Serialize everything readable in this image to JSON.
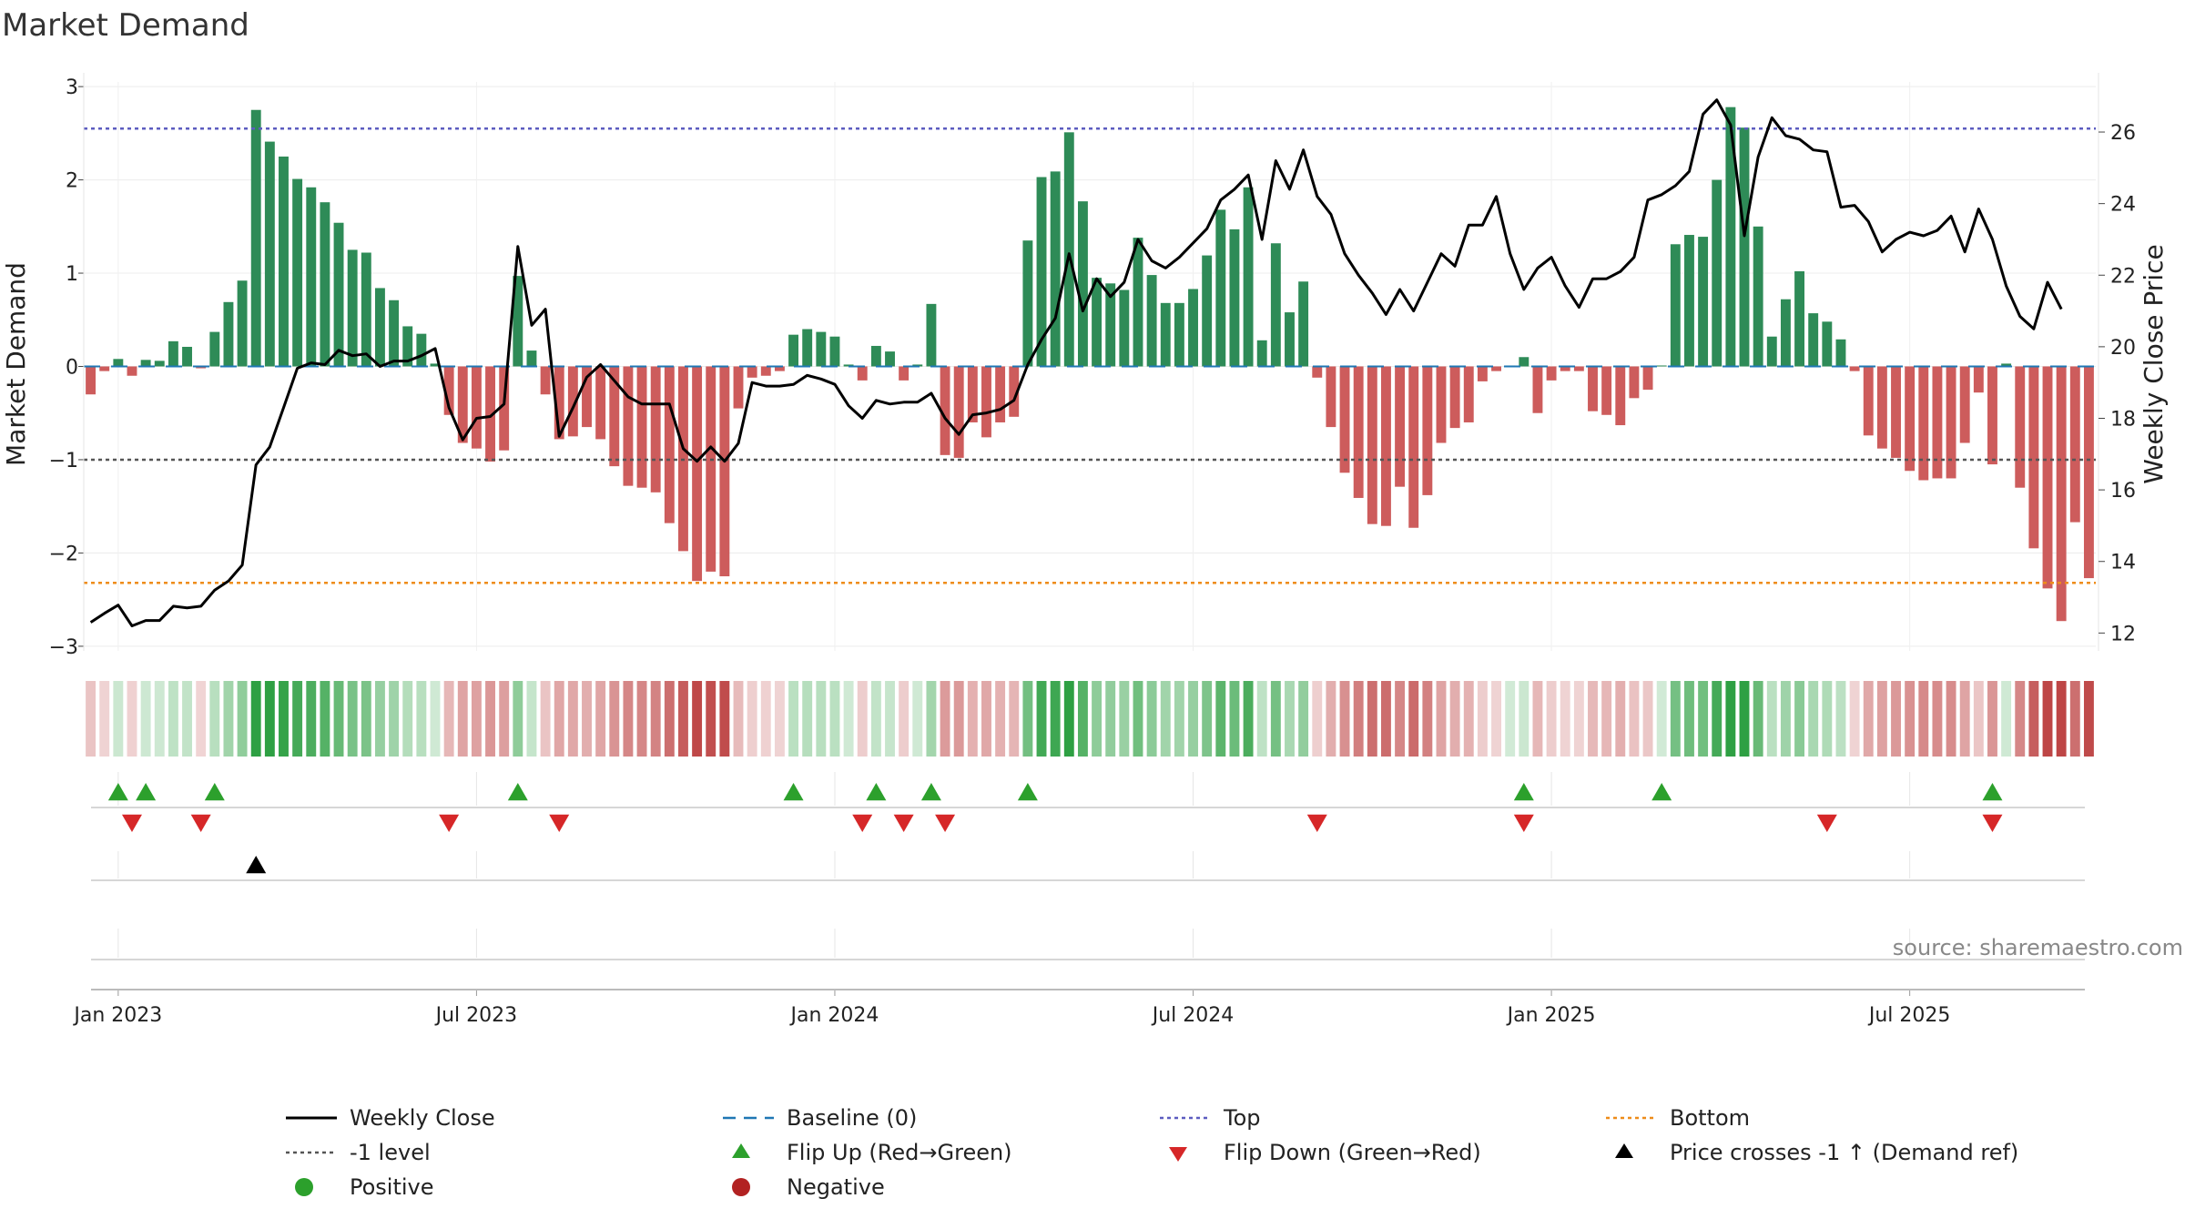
{
  "chart_data": {
    "type": "bar+line",
    "title": "Market Demand",
    "ylabel": "Market Demand",
    "y2label": "Weekly Close Price",
    "ylim": [
      -3.05,
      3.05
    ],
    "y2lim": [
      11.5,
      27.4
    ],
    "yticks": [
      "3",
      "2",
      "1",
      "0",
      "−1",
      "−2",
      "−3"
    ],
    "yticks_values": [
      3,
      2,
      1,
      0,
      -1,
      -2,
      -3
    ],
    "y2ticks": [
      "26",
      "24",
      "22",
      "20",
      "18",
      "16",
      "14",
      "12"
    ],
    "y2ticks_values": [
      26,
      24,
      22,
      20,
      18,
      16,
      14,
      12
    ],
    "x_ticks": [
      "Jan 2023",
      "Jul 2023",
      "Jan 2024",
      "Jul 2024",
      "Jan 2025",
      "Jul 2025"
    ],
    "x_tick_weeks": [
      2,
      28,
      54,
      80,
      106,
      132
    ],
    "reference_lines": {
      "top": 2.55,
      "minus_one": -1,
      "bottom": -2.32,
      "baseline": 0
    },
    "demand": [
      -0.3,
      -0.05,
      0.08,
      -0.1,
      0.07,
      0.06,
      0.27,
      0.21,
      -0.02,
      0.37,
      0.69,
      0.92,
      2.75,
      2.41,
      2.25,
      2.01,
      1.92,
      1.76,
      1.54,
      1.25,
      1.22,
      0.84,
      0.71,
      0.43,
      0.35,
      0.03,
      -0.52,
      -0.82,
      -0.88,
      -1.02,
      -0.9,
      0.97,
      0.17,
      -0.3,
      -0.78,
      -0.75,
      -0.65,
      -0.78,
      -1.07,
      -1.28,
      -1.3,
      -1.35,
      -1.68,
      -1.98,
      -2.3,
      -2.2,
      -2.25,
      -0.45,
      -0.12,
      -0.1,
      -0.05,
      0.34,
      0.4,
      0.37,
      0.32,
      0.02,
      -0.15,
      0.22,
      0.16,
      -0.15,
      0.02,
      0.67,
      -0.95,
      -0.98,
      -0.6,
      -0.76,
      -0.6,
      -0.54,
      1.35,
      2.03,
      2.09,
      2.51,
      1.77,
      0.95,
      0.89,
      0.82,
      1.38,
      0.98,
      0.68,
      0.68,
      0.83,
      1.19,
      1.68,
      1.47,
      1.92,
      0.28,
      1.32,
      0.58,
      0.91,
      -0.12,
      -0.65,
      -1.14,
      -1.41,
      -1.69,
      -1.71,
      -1.29,
      -1.73,
      -1.38,
      -0.82,
      -0.66,
      -0.6,
      -0.16,
      -0.05,
      0.01,
      0.1,
      -0.5,
      -0.15,
      -0.05,
      -0.05,
      -0.48,
      -0.52,
      -0.63,
      -0.34,
      -0.25,
      0.01,
      1.31,
      1.41,
      1.39,
      2.0,
      2.78,
      2.56,
      1.5,
      0.32,
      0.72,
      1.02,
      0.57,
      0.48,
      0.29,
      -0.05,
      -0.74,
      -0.88,
      -0.98,
      -1.12,
      -1.22,
      -1.2,
      -1.2,
      -0.82,
      -0.28,
      -1.05,
      0.03,
      -1.3,
      -1.95,
      -2.38,
      -2.73,
      -1.67,
      -2.27
    ],
    "weekly_close": [
      12.3,
      12.55,
      12.78,
      12.2,
      12.35,
      12.35,
      12.75,
      12.7,
      12.75,
      13.2,
      13.45,
      13.9,
      16.7,
      17.2,
      18.3,
      19.4,
      19.55,
      19.5,
      19.9,
      19.75,
      19.8,
      19.45,
      19.6,
      19.6,
      19.75,
      19.95,
      18.3,
      17.4,
      18.0,
      18.05,
      18.4,
      22.8,
      20.6,
      21.05,
      17.5,
      18.3,
      19.15,
      19.5,
      19.05,
      18.6,
      18.4,
      18.4,
      18.4,
      17.15,
      16.8,
      17.2,
      16.8,
      17.3,
      19.0,
      18.9,
      18.9,
      18.95,
      19.2,
      19.1,
      18.95,
      18.35,
      18.0,
      18.5,
      18.4,
      18.45,
      18.45,
      18.7,
      18.0,
      17.55,
      18.1,
      18.15,
      18.25,
      18.5,
      19.5,
      20.2,
      20.8,
      22.6,
      21.0,
      21.9,
      21.4,
      21.8,
      23.0,
      22.4,
      22.2,
      22.5,
      22.9,
      23.3,
      24.1,
      24.4,
      24.8,
      23.0,
      25.2,
      24.4,
      25.5,
      24.2,
      23.7,
      22.6,
      22.0,
      21.5,
      20.9,
      21.6,
      21.0,
      21.8,
      22.6,
      22.25,
      23.4,
      23.4,
      24.2,
      22.6,
      21.6,
      22.2,
      22.5,
      21.7,
      21.1,
      21.9,
      21.9,
      22.1,
      22.5,
      24.1,
      24.25,
      24.5,
      24.9,
      26.5,
      26.9,
      26.2,
      23.1,
      25.3,
      26.4,
      25.9,
      25.8,
      25.5,
      25.45,
      23.9,
      23.95,
      23.5,
      22.65,
      23.0,
      23.2,
      23.1,
      23.25,
      23.65,
      22.65,
      23.85,
      23.0,
      21.7,
      20.85,
      20.5,
      21.8,
      21.05
    ],
    "flip_up_weeks": [
      2,
      4,
      9,
      31,
      51,
      57,
      61,
      68,
      104,
      114,
      138
    ],
    "flip_down_weeks": [
      3,
      8,
      26,
      34,
      56,
      59,
      62,
      89,
      104,
      126,
      138
    ],
    "price_cross_weeks": [
      12
    ],
    "source_text": "source: sharemaestro.com",
    "legend": [
      {
        "label": "Weekly Close",
        "symbol": "line",
        "color": "#000000"
      },
      {
        "label": "Baseline (0)",
        "symbol": "dash",
        "color": "#1f77b4"
      },
      {
        "label": "Top",
        "symbol": "dot",
        "color": "#5c5cc0"
      },
      {
        "label": "Bottom",
        "symbol": "dot",
        "color": "#ee8c1a"
      },
      {
        "label": "-1 level",
        "symbol": "dot",
        "color": "#555555"
      },
      {
        "label": "Flip Up (Red→Green)",
        "symbol": "tri-up",
        "color": "#2ca02c"
      },
      {
        "label": "Flip Down (Green→Red)",
        "symbol": "tri-down",
        "color": "#d62728"
      },
      {
        "label": "Price crosses -1 ↑ (Demand ref)",
        "symbol": "tri-up",
        "color": "#000000"
      },
      {
        "label": "Positive",
        "symbol": "circle",
        "color": "#2ca02c"
      },
      {
        "label": "Negative",
        "symbol": "circle",
        "color": "#b22222"
      }
    ],
    "colors": {
      "positive": "#2e8b57",
      "negative": "#cd5c5c",
      "line": "#000000"
    }
  }
}
